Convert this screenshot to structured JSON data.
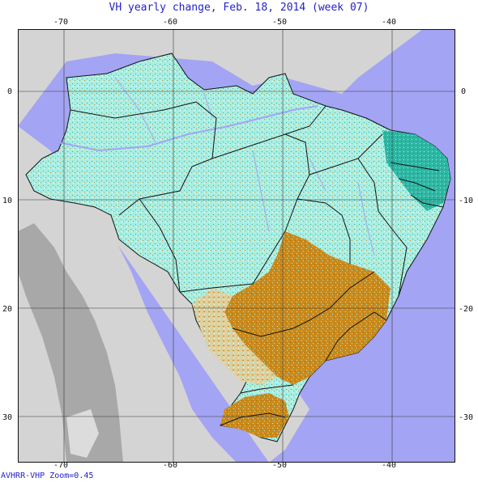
{
  "title": "VH yearly change, Feb. 18, 2014 (week 07)",
  "footer": "AVHRR-VHP Zoom=0.45",
  "axes": {
    "lon_ticks": [
      "-70",
      "-60",
      "-50",
      "-40"
    ],
    "lat_ticks": [
      "0",
      "10",
      "20",
      "30"
    ],
    "lon_range": [
      -73.5,
      -33.5
    ],
    "lat_range": [
      -34.5,
      5.5
    ]
  },
  "colors": {
    "ocean": "#a4a4f4",
    "land_outside": "#d4d4d4",
    "andes": "#a8a8a8",
    "veg_positive": "#9cecdc",
    "veg_strong_positive": "#29b3a0",
    "veg_negative": "#c98a1c",
    "water": "#a4a4f4",
    "grid": "#333333",
    "borders": "#111111"
  }
}
